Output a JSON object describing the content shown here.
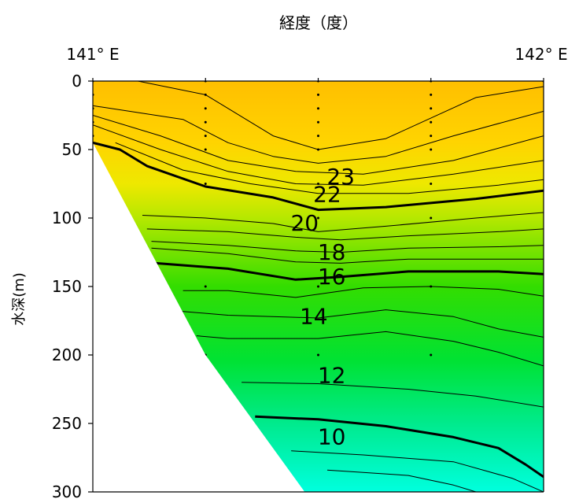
{
  "chart_data": {
    "type": "heatmap",
    "title": "経度（度）",
    "xlabel": "経度（度）",
    "ylabel": "水深(m)",
    "xlim": [
      141,
      142
    ],
    "ylim": [
      0,
      300
    ],
    "x_tick_labels": [
      "141° E",
      "142° E"
    ],
    "y_ticks": [
      0,
      50,
      100,
      150,
      200,
      250,
      300
    ],
    "color_scale": {
      "warm": "#ffc000",
      "cool": "#00ffdd"
    },
    "contour_labels": [
      {
        "text": "23",
        "x": 141.55,
        "y": 69
      },
      {
        "text": "22",
        "x": 141.52,
        "y": 82
      },
      {
        "text": "20",
        "x": 141.47,
        "y": 103
      },
      {
        "text": "18",
        "x": 141.53,
        "y": 124
      },
      {
        "text": "16",
        "x": 141.53,
        "y": 142
      },
      {
        "text": "14",
        "x": 141.49,
        "y": 171
      },
      {
        "text": "12",
        "x": 141.53,
        "y": 214
      },
      {
        "text": "10",
        "x": 141.53,
        "y": 259
      }
    ],
    "contours": [
      {
        "bold": false,
        "points": [
          [
            141.0,
            0
          ],
          [
            141.1,
            0
          ],
          [
            141.25,
            10
          ],
          [
            141.4,
            40
          ],
          [
            141.5,
            50
          ],
          [
            141.65,
            42
          ],
          [
            141.85,
            12
          ],
          [
            142.0,
            4
          ]
        ]
      },
      {
        "bold": false,
        "points": [
          [
            141.0,
            18
          ],
          [
            141.2,
            28
          ],
          [
            141.3,
            45
          ],
          [
            141.4,
            55
          ],
          [
            141.5,
            60
          ],
          [
            141.65,
            55
          ],
          [
            141.8,
            40
          ],
          [
            142.0,
            22
          ]
        ]
      },
      {
        "bold": false,
        "points": [
          [
            141.0,
            25
          ],
          [
            141.15,
            40
          ],
          [
            141.3,
            58
          ],
          [
            141.45,
            66
          ],
          [
            141.6,
            68
          ],
          [
            141.8,
            58
          ],
          [
            142.0,
            40
          ]
        ]
      },
      {
        "bold": false,
        "points": [
          [
            141.0,
            32
          ],
          [
            141.15,
            50
          ],
          [
            141.3,
            66
          ],
          [
            141.45,
            75
          ],
          [
            141.6,
            76
          ],
          [
            141.8,
            68
          ],
          [
            142.0,
            58
          ]
        ]
      },
      {
        "bold": false,
        "points": [
          [
            141.05,
            45
          ],
          [
            141.2,
            65
          ],
          [
            141.35,
            75
          ],
          [
            141.5,
            82
          ],
          [
            141.7,
            82
          ],
          [
            141.9,
            76
          ],
          [
            142.0,
            72
          ]
        ]
      },
      {
        "bold": true,
        "points": [
          [
            141.0,
            45
          ],
          [
            141.06,
            50
          ],
          [
            141.12,
            62
          ],
          [
            141.25,
            77
          ],
          [
            141.4,
            85
          ],
          [
            141.5,
            94
          ],
          [
            141.65,
            92
          ],
          [
            141.85,
            86
          ],
          [
            142.0,
            80
          ]
        ]
      },
      {
        "bold": false,
        "points": [
          [
            141.11,
            98
          ],
          [
            141.25,
            100
          ],
          [
            141.4,
            104
          ],
          [
            141.5,
            110
          ],
          [
            141.65,
            106
          ],
          [
            141.85,
            100
          ],
          [
            142.0,
            96
          ]
        ]
      },
      {
        "bold": false,
        "points": [
          [
            141.12,
            108
          ],
          [
            141.3,
            110
          ],
          [
            141.45,
            114
          ],
          [
            141.55,
            116
          ],
          [
            141.7,
            113
          ],
          [
            141.9,
            110
          ],
          [
            142.0,
            108
          ]
        ]
      },
      {
        "bold": false,
        "points": [
          [
            141.13,
            117
          ],
          [
            141.3,
            120
          ],
          [
            141.45,
            124
          ],
          [
            141.55,
            125
          ],
          [
            141.7,
            122
          ],
          [
            141.9,
            121
          ],
          [
            142.0,
            120
          ]
        ]
      },
      {
        "bold": false,
        "points": [
          [
            141.13,
            122
          ],
          [
            141.3,
            126
          ],
          [
            141.45,
            132
          ],
          [
            141.55,
            133
          ],
          [
            141.7,
            130
          ],
          [
            141.9,
            130
          ],
          [
            142.0,
            130
          ]
        ]
      },
      {
        "bold": true,
        "points": [
          [
            141.14,
            133
          ],
          [
            141.3,
            137
          ],
          [
            141.45,
            145
          ],
          [
            141.55,
            143
          ],
          [
            141.7,
            139
          ],
          [
            141.9,
            139
          ],
          [
            142.0,
            141
          ]
        ]
      },
      {
        "bold": false,
        "points": [
          [
            141.2,
            153
          ],
          [
            141.3,
            153
          ],
          [
            141.45,
            158
          ],
          [
            141.6,
            151
          ],
          [
            141.75,
            150
          ],
          [
            141.9,
            152
          ],
          [
            142.0,
            157
          ]
        ]
      },
      {
        "bold": false,
        "points": [
          [
            141.19,
            168
          ],
          [
            141.3,
            171
          ],
          [
            141.5,
            173
          ],
          [
            141.65,
            167
          ],
          [
            141.8,
            172
          ],
          [
            141.9,
            181
          ],
          [
            142.0,
            187
          ]
        ]
      },
      {
        "bold": false,
        "points": [
          [
            141.23,
            186
          ],
          [
            141.3,
            188
          ],
          [
            141.5,
            188
          ],
          [
            141.65,
            183
          ],
          [
            141.8,
            190
          ],
          [
            141.9,
            198
          ],
          [
            142.0,
            208
          ]
        ]
      },
      {
        "bold": false,
        "points": [
          [
            141.33,
            220
          ],
          [
            141.5,
            221
          ],
          [
            141.7,
            225
          ],
          [
            141.85,
            230
          ],
          [
            142.0,
            238
          ]
        ]
      },
      {
        "bold": true,
        "points": [
          [
            141.36,
            245
          ],
          [
            141.5,
            247
          ],
          [
            141.65,
            252
          ],
          [
            141.8,
            260
          ],
          [
            141.9,
            268
          ],
          [
            141.96,
            280
          ],
          [
            142.0,
            289
          ]
        ]
      },
      {
        "bold": false,
        "points": [
          [
            141.44,
            270
          ],
          [
            141.6,
            273
          ],
          [
            141.8,
            278
          ],
          [
            141.93,
            290
          ],
          [
            142.0,
            300
          ]
        ]
      },
      {
        "bold": false,
        "points": [
          [
            141.52,
            284
          ],
          [
            141.7,
            288
          ],
          [
            141.8,
            295
          ],
          [
            141.85,
            300
          ]
        ]
      }
    ],
    "stations": [
      {
        "x": 141.0,
        "depths": [
          0,
          10,
          20,
          30,
          40
        ]
      },
      {
        "x": 141.25,
        "depths": [
          0,
          10,
          20,
          30,
          40,
          50,
          75,
          150,
          200
        ]
      },
      {
        "x": 141.5,
        "depths": [
          0,
          10,
          20,
          30,
          40,
          50,
          75,
          100,
          150,
          200
        ]
      },
      {
        "x": 141.75,
        "depths": [
          0,
          10,
          20,
          30,
          40,
          50,
          75,
          100,
          150,
          200
        ]
      },
      {
        "x": 142.0,
        "depths": [
          0
        ]
      }
    ],
    "seabed": [
      [
        141.0,
        45
      ],
      [
        141.25,
        200
      ],
      [
        141.47,
        300
      ]
    ]
  }
}
